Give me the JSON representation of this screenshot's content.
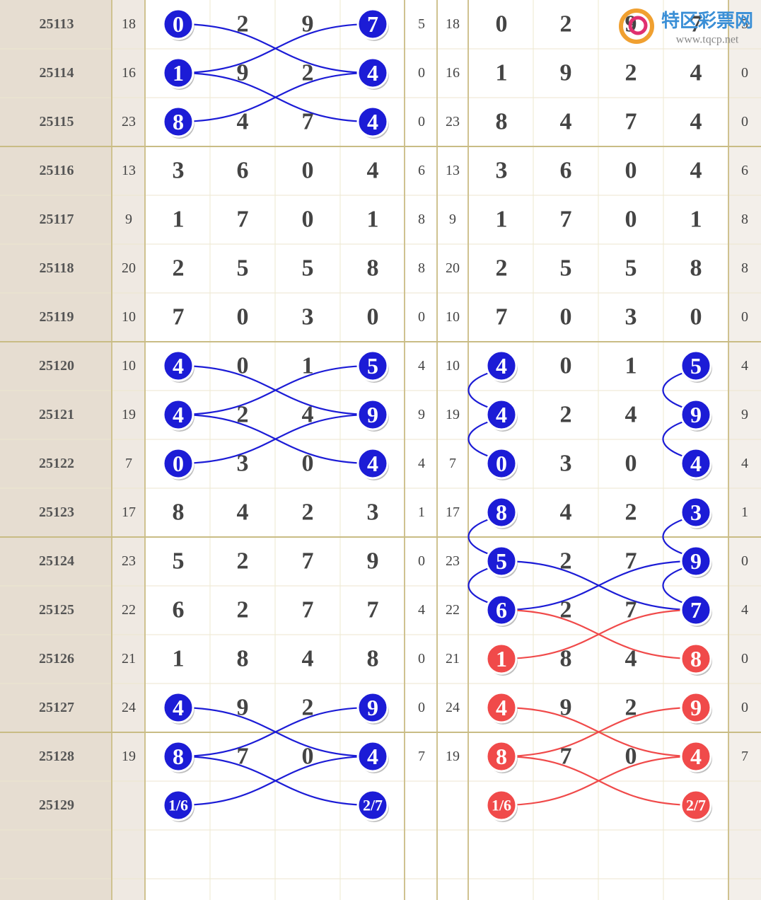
{
  "logo": {
    "name": "特区彩票网",
    "url": "www.tqcp.net"
  },
  "rows": [
    {
      "issue": "25113",
      "sum": 18,
      "digits": [
        0,
        2,
        9,
        7
      ],
      "span": 5,
      "left_mark": "#1c1cd6",
      "right_mark": null
    },
    {
      "issue": "25114",
      "sum": 16,
      "digits": [
        1,
        9,
        2,
        4
      ],
      "span": 0,
      "left_mark": "#1c1cd6",
      "right_mark": null
    },
    {
      "issue": "25115",
      "sum": 23,
      "digits": [
        8,
        4,
        7,
        4
      ],
      "span": 0,
      "left_mark": "#1c1cd6",
      "right_mark": null
    },
    {
      "issue": "25116",
      "sum": 13,
      "digits": [
        3,
        6,
        0,
        4
      ],
      "span": 6,
      "left_mark": null,
      "right_mark": null
    },
    {
      "issue": "25117",
      "sum": 9,
      "digits": [
        1,
        7,
        0,
        1
      ],
      "span": 8,
      "left_mark": null,
      "right_mark": null
    },
    {
      "issue": "25118",
      "sum": 20,
      "digits": [
        2,
        5,
        5,
        8
      ],
      "span": 8,
      "left_mark": null,
      "right_mark": null
    },
    {
      "issue": "25119",
      "sum": 10,
      "digits": [
        7,
        0,
        3,
        0
      ],
      "span": 0,
      "left_mark": null,
      "right_mark": null
    },
    {
      "issue": "25120",
      "sum": 10,
      "digits": [
        4,
        0,
        1,
        5
      ],
      "span": 4,
      "left_mark": "#1c1cd6",
      "right_mark": "#1c1cd6"
    },
    {
      "issue": "25121",
      "sum": 19,
      "digits": [
        4,
        2,
        4,
        9
      ],
      "span": 9,
      "left_mark": "#1c1cd6",
      "right_mark": "#1c1cd6"
    },
    {
      "issue": "25122",
      "sum": 7,
      "digits": [
        0,
        3,
        0,
        4
      ],
      "span": 4,
      "left_mark": "#1c1cd6",
      "right_mark": "#1c1cd6"
    },
    {
      "issue": "25123",
      "sum": 17,
      "digits": [
        8,
        4,
        2,
        3
      ],
      "span": 1,
      "left_mark": null,
      "right_mark": "#1c1cd6"
    },
    {
      "issue": "25124",
      "sum": 23,
      "digits": [
        5,
        2,
        7,
        9
      ],
      "span": 0,
      "left_mark": null,
      "right_mark": "#1c1cd6"
    },
    {
      "issue": "25125",
      "sum": 22,
      "digits": [
        6,
        2,
        7,
        7
      ],
      "span": 4,
      "left_mark": null,
      "right_mark": "#1c1cd6"
    },
    {
      "issue": "25126",
      "sum": 21,
      "digits": [
        1,
        8,
        4,
        8
      ],
      "span": 0,
      "left_mark": null,
      "right_mark": "#f04a4a"
    },
    {
      "issue": "25127",
      "sum": 24,
      "digits": [
        4,
        9,
        2,
        9
      ],
      "span": 0,
      "left_mark": "#1c1cd6",
      "right_mark": "#f04a4a"
    },
    {
      "issue": "25128",
      "sum": 19,
      "digits": [
        8,
        7,
        0,
        4
      ],
      "span": 7,
      "left_mark": "#1c1cd6",
      "right_mark": "#f04a4a"
    },
    {
      "issue": "25129",
      "predict": [
        "1/6",
        "2/7"
      ],
      "left_mark": "#1c1cd6",
      "right_mark": "#f04a4a"
    }
  ]
}
